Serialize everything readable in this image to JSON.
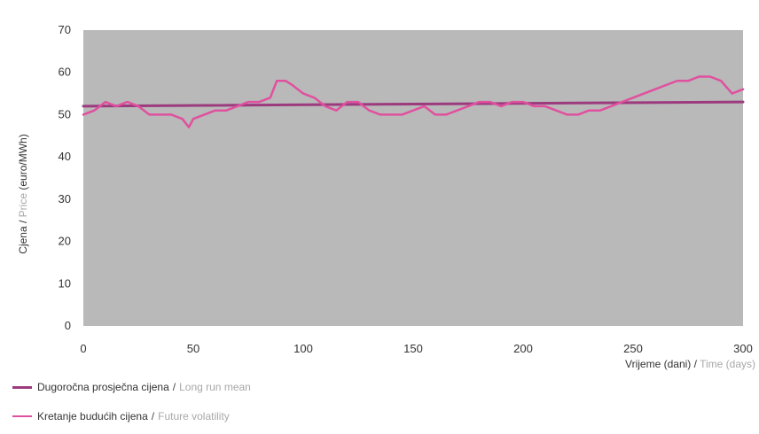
{
  "chart_data": {
    "type": "line",
    "title": "",
    "ylabel": {
      "hr": "Cjena",
      "sep": " / ",
      "en": "Price",
      "unit": " (euro/MWh)"
    },
    "xlabel": {
      "hr": "Vrijeme (dani)",
      "sep": " / ",
      "en": "Time (days)"
    },
    "xlim": [
      0,
      300
    ],
    "ylim": [
      0,
      70
    ],
    "xticks": [
      0,
      50,
      100,
      150,
      200,
      250,
      300
    ],
    "yticks": [
      0,
      10,
      20,
      30,
      40,
      50,
      60,
      70
    ],
    "grid": false,
    "plot_background": "#b9b9b9",
    "legend_position": "bottom-left",
    "series": [
      {
        "name_hr": "Dugoročna prosječna cijena",
        "name_en": "Long run mean",
        "color": "#9c3a7e",
        "x": [
          0,
          300
        ],
        "y": [
          52,
          53
        ]
      },
      {
        "name_hr": "Kretanje budućih cijena",
        "name_en": "Future volatility",
        "color": "#e0509e",
        "x": [
          0,
          5,
          10,
          15,
          20,
          25,
          30,
          35,
          40,
          45,
          48,
          50,
          55,
          60,
          65,
          70,
          75,
          80,
          85,
          88,
          92,
          95,
          100,
          105,
          110,
          115,
          120,
          125,
          130,
          135,
          140,
          145,
          150,
          155,
          160,
          165,
          170,
          175,
          180,
          185,
          190,
          195,
          200,
          205,
          210,
          215,
          220,
          225,
          230,
          235,
          240,
          245,
          250,
          255,
          260,
          265,
          270,
          275,
          280,
          285,
          290,
          295,
          300
        ],
        "y": [
          50,
          51,
          53,
          52,
          53,
          52,
          50,
          50,
          50,
          49,
          47,
          49,
          50,
          51,
          51,
          52,
          53,
          53,
          54,
          58,
          58,
          57,
          55,
          54,
          52,
          51,
          53,
          53,
          51,
          50,
          50,
          50,
          51,
          52,
          50,
          50,
          51,
          52,
          53,
          53,
          52,
          53,
          53,
          52,
          52,
          51,
          50,
          50,
          51,
          51,
          52,
          53,
          54,
          55,
          56,
          57,
          58,
          58,
          59,
          59,
          58,
          55,
          56
        ]
      }
    ]
  }
}
